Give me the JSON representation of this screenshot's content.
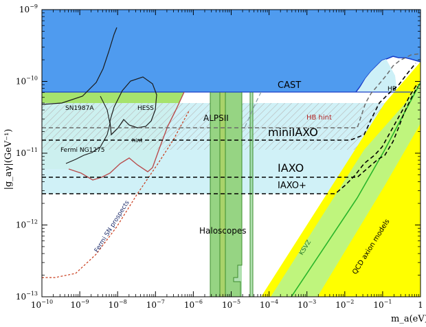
{
  "chart_data": {
    "type": "area",
    "xlabel": "m_a(eV)",
    "ylabel": "|g_aγ|(GeV⁻¹)",
    "xscale": "log",
    "yscale": "log",
    "xlim": [
      1e-10,
      1
    ],
    "ylim": [
      1e-13,
      1e-09
    ],
    "x_ticks": [
      {
        "v": 1e-10,
        "b": "10",
        "e": "−10"
      },
      {
        "v": 1e-09,
        "b": "10",
        "e": "−9"
      },
      {
        "v": 1e-08,
        "b": "10",
        "e": "−8"
      },
      {
        "v": 1e-07,
        "b": "10",
        "e": "−7"
      },
      {
        "v": 1e-06,
        "b": "10",
        "e": "−6"
      },
      {
        "v": 1e-05,
        "b": "10",
        "e": "−5"
      },
      {
        "v": 0.0001,
        "b": "10",
        "e": "−4"
      },
      {
        "v": 0.001,
        "b": "10",
        "e": "−3"
      },
      {
        "v": 0.01,
        "b": "10",
        "e": "−2"
      },
      {
        "v": 0.1,
        "b": "10",
        "e": "−1"
      },
      {
        "v": 1,
        "b": "1",
        "e": ""
      }
    ],
    "y_ticks": [
      {
        "v": 1e-13,
        "b": "10",
        "e": "−13"
      },
      {
        "v": 1e-12,
        "b": "10",
        "e": "−12"
      },
      {
        "v": 1e-11,
        "b": "10",
        "e": "−11"
      },
      {
        "v": 1e-10,
        "b": "10",
        "e": "−10"
      },
      {
        "v": 1e-09,
        "b": "10",
        "e": "−9"
      }
    ],
    "colors": {
      "cast": "#4f9bef",
      "cast_edge": "#1a3fc8",
      "astro": "#a6e36d",
      "iaxo_band": "#cdf0f7",
      "haloscopes": "#a9d36a",
      "alps": "#8fd48e",
      "qcd_band": "#ffff00",
      "ksvz_band": "#bff57d",
      "ksvz_line": "#2ab52a",
      "hb_hint": "#d94040",
      "fermi_sn": "#d04a2a"
    },
    "regions": [
      {
        "name": "CAST",
        "upper": 1e-09,
        "lower": 6.6e-11,
        "xmax_flat": 0.01
      },
      {
        "name": "IAXO",
        "sensitivity": [
          [
            1e-10,
            4.3e-12
          ],
          [
            0.01,
            4.3e-12
          ],
          [
            0.05,
            8e-12
          ],
          [
            0.3,
            1.5e-11
          ]
        ]
      },
      {
        "name": "IAXO+",
        "sensitivity": [
          [
            1e-10,
            2.7e-12
          ],
          [
            0.01,
            2.7e-12
          ],
          [
            0.05,
            4.5e-12
          ],
          [
            0.3,
            1.2e-11
          ]
        ]
      },
      {
        "name": "miniIAXO",
        "sensitivity": [
          [
            1e-10,
            1.45e-11
          ],
          [
            0.01,
            1.45e-11
          ],
          [
            0.04,
            3e-11
          ],
          [
            0.2,
            5e-11
          ]
        ]
      },
      {
        "name": "ALPSII",
        "sensitivity": [
          [
            1e-10,
            2e-11
          ],
          [
            0.0001,
            2e-11
          ]
        ]
      },
      {
        "name": "Haloscopes",
        "x_range": [
          1.5e-06,
          2.5e-05
        ]
      },
      {
        "name": "HB hint",
        "band": [
          1.1e-11,
          3.7e-11
        ]
      }
    ],
    "labels": {
      "cast": "CAST",
      "hb": "HB",
      "hb_hint": "HB hint",
      "alps": "ALPSII",
      "miniiaxo": "miniIAXO",
      "iaxo": "IAXO",
      "iaxo_plus": "IAXO+",
      "haloscopes": "Haloscopes",
      "ksvz": "KSVZ",
      "qcd": "QCD axion models",
      "sn1987a": "SN1987A",
      "hess": "HESS",
      "hint": "hint",
      "fermi_ngc": "Fermi NG1275",
      "fermi_sn": "Fermi SN prospects"
    }
  }
}
